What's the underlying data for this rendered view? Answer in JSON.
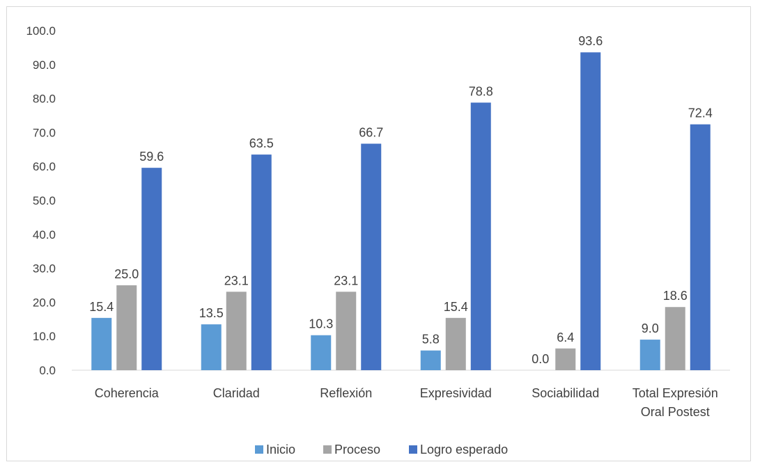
{
  "chart_data": {
    "type": "bar",
    "categories": [
      [
        "Coherencia"
      ],
      [
        "Claridad"
      ],
      [
        "Reflexión"
      ],
      [
        "Expresividad"
      ],
      [
        "Sociabilidad"
      ],
      [
        "Total Expresión",
        "Oral Postest"
      ]
    ],
    "series": [
      {
        "name": "Inicio",
        "values": [
          15.4,
          13.5,
          10.3,
          5.8,
          0.0,
          9.0
        ],
        "color": "#5b9bd5"
      },
      {
        "name": "Proceso",
        "values": [
          25.0,
          23.1,
          23.1,
          15.4,
          6.4,
          18.6
        ],
        "color": "#a5a5a5"
      },
      {
        "name": "Logro esperado",
        "values": [
          59.6,
          63.5,
          66.7,
          78.8,
          93.6,
          72.4
        ],
        "color": "#4472c4"
      }
    ],
    "ylim": [
      0,
      100
    ],
    "yticks": [
      "0.0",
      "10.0",
      "20.0",
      "30.0",
      "40.0",
      "50.0",
      "60.0",
      "70.0",
      "80.0",
      "90.0",
      "100.0"
    ],
    "grid": false,
    "legend": "bottom",
    "axis_color": "#d9d9d9",
    "label_color": "#404040"
  }
}
